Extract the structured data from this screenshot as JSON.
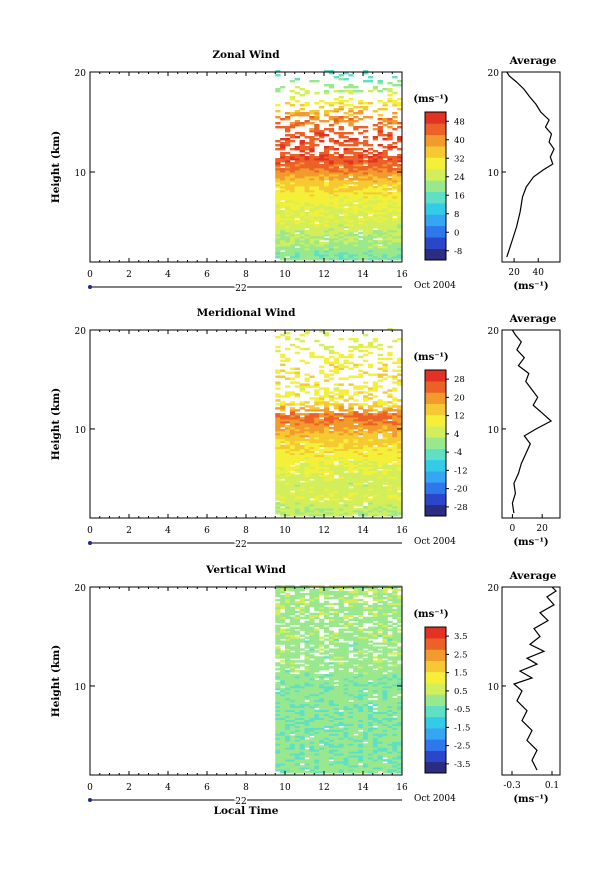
{
  "chart_data": [
    {
      "type": "heatmap",
      "title": "Zonal Wind",
      "ylabel": "Height (km)",
      "xlabel": "",
      "date_label": "Oct 2004",
      "day_label": "22",
      "xlim": [
        0,
        16
      ],
      "ylim": [
        1,
        20
      ],
      "x_ticks": [
        0,
        2,
        4,
        6,
        8,
        10,
        12,
        14,
        16
      ],
      "y_ticks": [
        10,
        20
      ],
      "data_x_start": 9.5,
      "unit_label": "(ms⁻¹)",
      "colorbar_ticks": [
        48,
        40,
        32,
        24,
        16,
        8,
        0,
        -8
      ],
      "colorbar_range": [
        -12,
        52
      ],
      "height_profile": [
        {
          "y": 1.5,
          "v": 18
        },
        {
          "y": 3,
          "v": 22
        },
        {
          "y": 4.5,
          "v": 25
        },
        {
          "y": 6,
          "v": 27
        },
        {
          "y": 7.5,
          "v": 30
        },
        {
          "y": 9,
          "v": 35
        },
        {
          "y": 10.3,
          "v": 43
        },
        {
          "y": 11.2,
          "v": 46
        },
        {
          "y": 12.5,
          "v": 46
        },
        {
          "y": 14,
          "v": 45
        },
        {
          "y": 15.5,
          "v": 40
        },
        {
          "y": 17,
          "v": 30
        },
        {
          "y": 18.5,
          "v": 20
        },
        {
          "y": 19.5,
          "v": 15
        }
      ],
      "average": {
        "title": "Average",
        "xlabel": "(ms⁻¹)",
        "xlim": [
          10,
          58
        ],
        "x_ticks": [
          20,
          40
        ],
        "y_ticks": [
          10,
          20
        ],
        "ylim": [
          1,
          20
        ],
        "points": [
          [
            14,
            1.5
          ],
          [
            18,
            3
          ],
          [
            22,
            4.5
          ],
          [
            25,
            6
          ],
          [
            27,
            7.5
          ],
          [
            30,
            8.5
          ],
          [
            36,
            9.5
          ],
          [
            44,
            10.2
          ],
          [
            52,
            10.8
          ],
          [
            50,
            11.5
          ],
          [
            53,
            12.3
          ],
          [
            49,
            13
          ],
          [
            51,
            13.8
          ],
          [
            46,
            14.5
          ],
          [
            49,
            15.2
          ],
          [
            42,
            16
          ],
          [
            38,
            16.8
          ],
          [
            33,
            17.5
          ],
          [
            28,
            18.3
          ],
          [
            22,
            19
          ],
          [
            16,
            19.6
          ],
          [
            14,
            20
          ]
        ]
      }
    },
    {
      "type": "heatmap",
      "title": "Meridional Wind",
      "ylabel": "Height (km)",
      "xlabel": "",
      "date_label": "Oct 2004",
      "day_label": "22",
      "xlim": [
        0,
        16
      ],
      "ylim": [
        1,
        20
      ],
      "x_ticks": [
        0,
        2,
        4,
        6,
        8,
        10,
        12,
        14,
        16
      ],
      "y_ticks": [
        10,
        20
      ],
      "data_x_start": 9.5,
      "unit_label": "(ms⁻¹)",
      "colorbar_ticks": [
        28,
        20,
        12,
        4,
        -4,
        -12,
        -20,
        -28
      ],
      "colorbar_range": [
        -32,
        32
      ],
      "height_profile": [
        {
          "y": 1.5,
          "v": 3
        },
        {
          "y": 3,
          "v": 6
        },
        {
          "y": 4.5,
          "v": 5
        },
        {
          "y": 6,
          "v": 7
        },
        {
          "y": 7.5,
          "v": 11
        },
        {
          "y": 9,
          "v": 14
        },
        {
          "y": 10.3,
          "v": 20
        },
        {
          "y": 11.2,
          "v": 24
        },
        {
          "y": 12.5,
          "v": 12
        },
        {
          "y": 14,
          "v": 10
        },
        {
          "y": 15.5,
          "v": 12
        },
        {
          "y": 17,
          "v": 9
        },
        {
          "y": 18.5,
          "v": 8
        },
        {
          "y": 19.5,
          "v": 6
        }
      ],
      "average": {
        "title": "Average",
        "xlabel": "(ms⁻¹)",
        "xlim": [
          -7,
          32
        ],
        "x_ticks": [
          0,
          20
        ],
        "y_ticks": [
          10,
          20
        ],
        "ylim": [
          1,
          20
        ],
        "points": [
          [
            1,
            1.5
          ],
          [
            0,
            2.5
          ],
          [
            2,
            3.5
          ],
          [
            1,
            4.5
          ],
          [
            4,
            5.5
          ],
          [
            6,
            6.5
          ],
          [
            9,
            7.5
          ],
          [
            12,
            8.5
          ],
          [
            8,
            9.3
          ],
          [
            16,
            10
          ],
          [
            26,
            10.8
          ],
          [
            20,
            11.6
          ],
          [
            14,
            12.4
          ],
          [
            17,
            13.2
          ],
          [
            13,
            14
          ],
          [
            9,
            14.8
          ],
          [
            11,
            15.6
          ],
          [
            4,
            16.4
          ],
          [
            8,
            17.2
          ],
          [
            3,
            18
          ],
          [
            6,
            18.8
          ],
          [
            2,
            19.5
          ],
          [
            0,
            20
          ]
        ]
      }
    },
    {
      "type": "heatmap",
      "title": "Vertical Wind",
      "ylabel": "Height (km)",
      "xlabel": "Local Time",
      "date_label": "Oct 2004",
      "day_label": "22",
      "xlim": [
        0,
        16
      ],
      "ylim": [
        1,
        20
      ],
      "x_ticks": [
        0,
        2,
        4,
        6,
        8,
        10,
        12,
        14,
        16
      ],
      "y_ticks": [
        10,
        20
      ],
      "data_x_start": 9.5,
      "unit_label": "(ms⁻¹)",
      "colorbar_ticks": [
        3.5,
        2.5,
        1.5,
        0.5,
        -0.5,
        -1.5,
        -2.5,
        -3.5
      ],
      "colorbar_range": [
        -4,
        4
      ],
      "height_profile": [
        {
          "y": 1.5,
          "v": -0.1
        },
        {
          "y": 3,
          "v": -0.2
        },
        {
          "y": 4.5,
          "v": -0.15
        },
        {
          "y": 6,
          "v": -0.2
        },
        {
          "y": 7.5,
          "v": -0.2
        },
        {
          "y": 9,
          "v": -0.1
        },
        {
          "y": 10.3,
          "v": -0.15
        },
        {
          "y": 11.2,
          "v": 0.0
        },
        {
          "y": 12.5,
          "v": 0.05
        },
        {
          "y": 14,
          "v": 0.0
        },
        {
          "y": 15.5,
          "v": 0.05
        },
        {
          "y": 17,
          "v": 0.1
        },
        {
          "y": 18.5,
          "v": 0.15
        },
        {
          "y": 19.5,
          "v": 0.12
        }
      ],
      "average": {
        "title": "Average",
        "xlabel": "(ms⁻¹)",
        "xlim": [
          -0.4,
          0.18
        ],
        "x_ticks": [
          -0.3,
          0.1
        ],
        "y_ticks": [
          10,
          20
        ],
        "ylim": [
          1,
          20
        ],
        "points": [
          [
            -0.05,
            1.5
          ],
          [
            -0.1,
            2.5
          ],
          [
            -0.05,
            3.5
          ],
          [
            -0.15,
            4.5
          ],
          [
            -0.1,
            5.5
          ],
          [
            -0.2,
            6.5
          ],
          [
            -0.15,
            7.5
          ],
          [
            -0.25,
            8.5
          ],
          [
            -0.2,
            9.5
          ],
          [
            -0.28,
            10.2
          ],
          [
            -0.1,
            10.8
          ],
          [
            -0.22,
            11.5
          ],
          [
            -0.05,
            12.2
          ],
          [
            -0.15,
            12.8
          ],
          [
            0.02,
            13.5
          ],
          [
            -0.12,
            14.2
          ],
          [
            -0.02,
            15
          ],
          [
            -0.08,
            15.8
          ],
          [
            0.06,
            16.6
          ],
          [
            -0.02,
            17.4
          ],
          [
            0.12,
            18.2
          ],
          [
            0.05,
            19
          ],
          [
            0.14,
            19.6
          ],
          [
            0.1,
            20
          ]
        ]
      }
    }
  ]
}
